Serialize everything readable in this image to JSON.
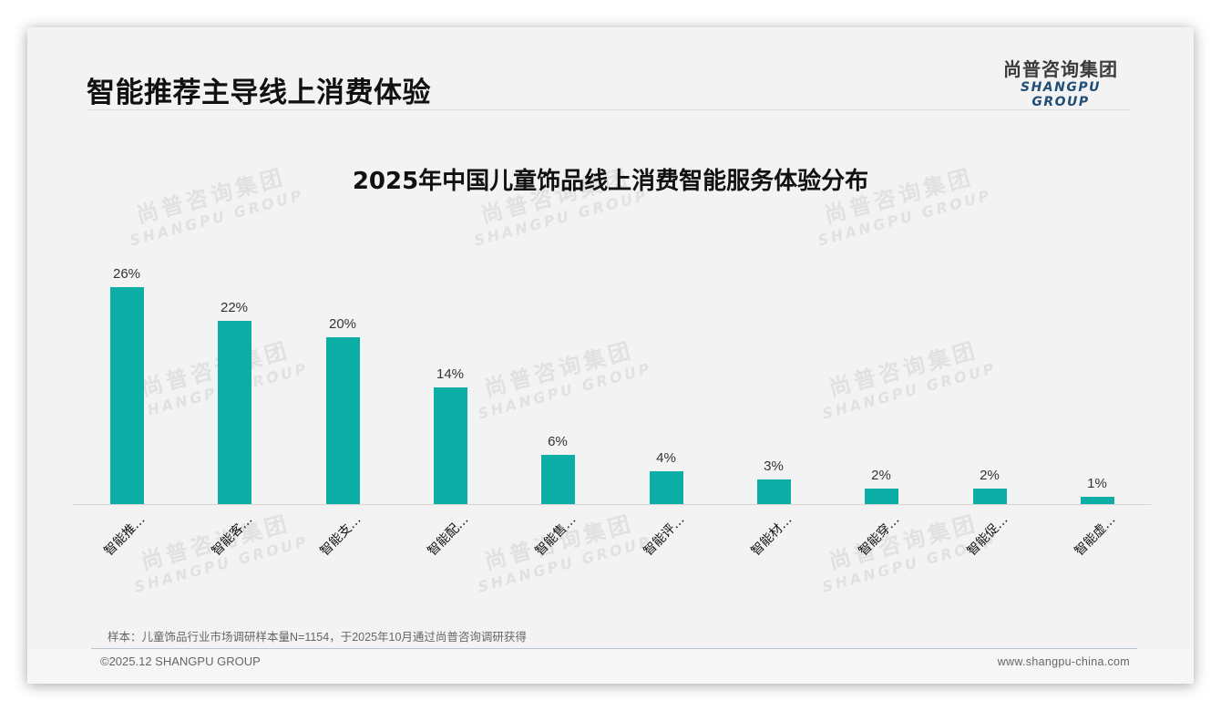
{
  "header": {
    "page_title": "智能推荐主导线上消费体验",
    "logo_cn": "尚普咨询集团",
    "logo_en": "SHANGPU GROUP"
  },
  "watermark": {
    "cn": "尚普咨询集团",
    "en": "SHANGPU GROUP"
  },
  "colors": {
    "bar": "#0bada4",
    "logo_en": "#1f4e79",
    "background": "#f3f3f3"
  },
  "chart_data": {
    "type": "bar",
    "title": "2025年中国儿童饰品线上消费智能服务体验分布",
    "xlabel": "",
    "ylabel": "",
    "categories": [
      "智能推…",
      "智能客…",
      "智能支…",
      "智能配…",
      "智能售…",
      "智能评…",
      "智能材…",
      "智能穿…",
      "智能促…",
      "智能虚…"
    ],
    "values": [
      26,
      22,
      20,
      14,
      6,
      4,
      3,
      2,
      2,
      1
    ],
    "value_labels": [
      "26%",
      "22%",
      "20%",
      "14%",
      "6%",
      "4%",
      "3%",
      "2%",
      "2%",
      "1%"
    ],
    "unit": "%",
    "ylim": [
      0,
      28
    ],
    "grid": false,
    "legend": "none",
    "y_axis_visible": false
  },
  "footer": {
    "footnote": "样本：儿童饰品行业市场调研样本量N=1154，于2025年10月通过尚普咨询调研获得",
    "copyright": "©2025.12 SHANGPU GROUP",
    "website": "www.shangpu-china.com"
  }
}
